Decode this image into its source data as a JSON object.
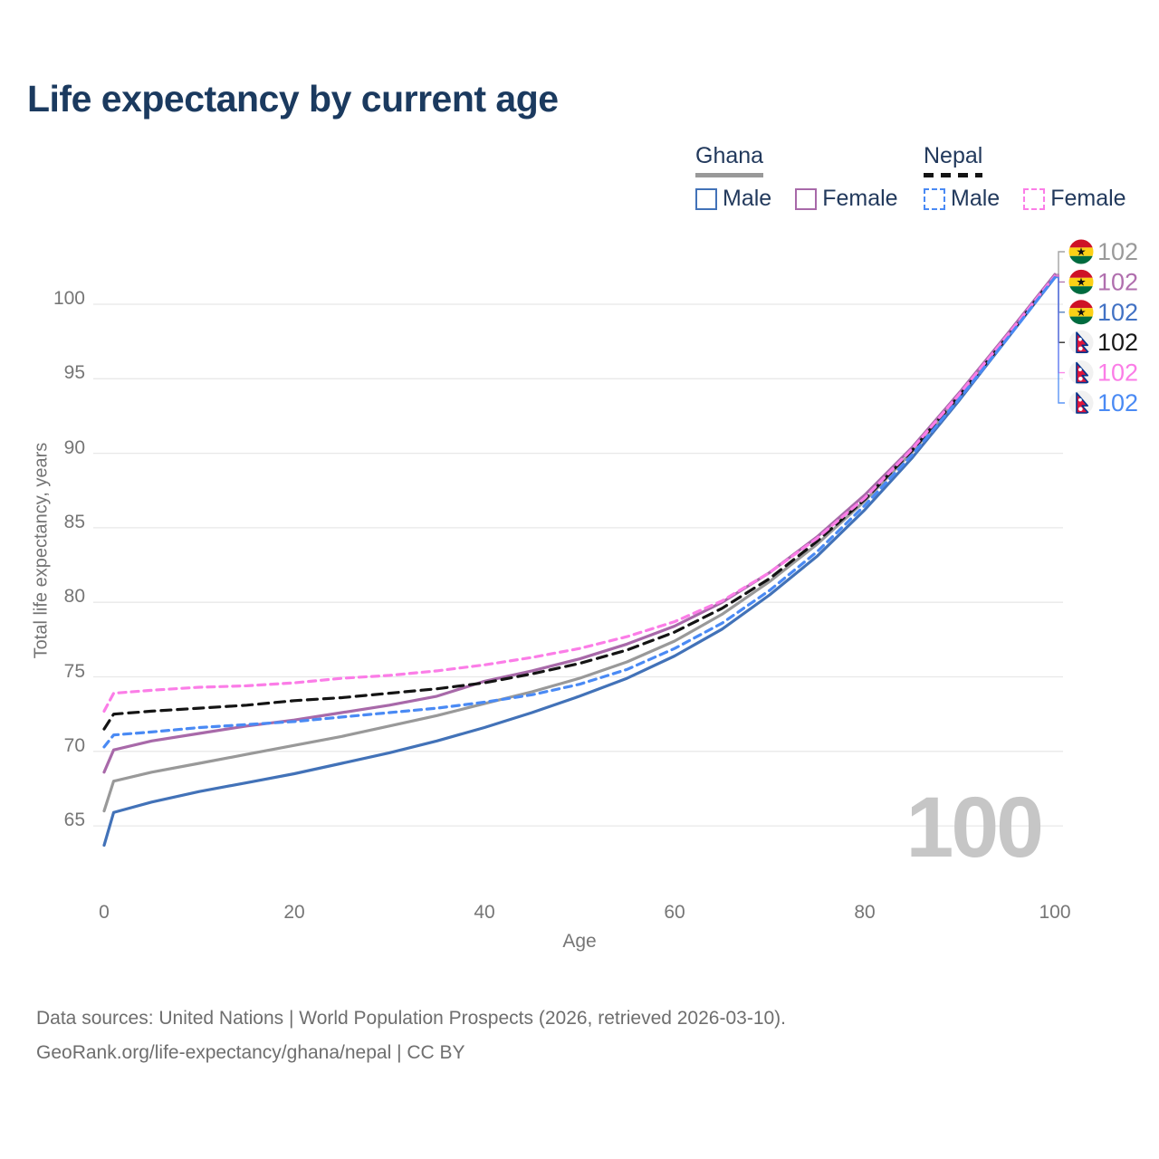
{
  "header": {
    "title": "Life expectancy by current age"
  },
  "legend": {
    "groups": [
      {
        "label": "Ghana",
        "line_style": "solid",
        "line_color": "#999999",
        "items": [
          {
            "label": "Male",
            "color": "#4272b8",
            "box_style": "solid"
          },
          {
            "label": "Female",
            "color": "#a869a9",
            "box_style": "solid"
          }
        ]
      },
      {
        "label": "Nepal",
        "line_style": "dashed",
        "line_color": "#141414",
        "items": [
          {
            "label": "Male",
            "color": "#4a8af4",
            "box_style": "dashed"
          },
          {
            "label": "Female",
            "color": "#fb7de7",
            "box_style": "dashed"
          }
        ]
      }
    ]
  },
  "chart_data": {
    "type": "line",
    "title": "Life expectancy by current age",
    "xlabel": "Age",
    "ylabel": "Total life expectancy, years",
    "xlim": [
      0,
      100
    ],
    "ylim": [
      62.5,
      103
    ],
    "x_ticks": [
      0,
      20,
      40,
      60,
      80,
      100
    ],
    "y_ticks": [
      65,
      70,
      75,
      80,
      85,
      90,
      95,
      100
    ],
    "grid": "horizontal",
    "legend_position": "top-right",
    "hover_age_label": "100",
    "ages": [
      0,
      1,
      5,
      10,
      15,
      20,
      25,
      30,
      35,
      40,
      45,
      50,
      55,
      60,
      65,
      70,
      75,
      80,
      85,
      90,
      95,
      100
    ],
    "series": [
      {
        "id": "ghana-both",
        "country": "Ghana",
        "sex": "Both sexes",
        "color": "#999999",
        "label_color": "#9a9a9a",
        "line_style": "solid",
        "flag": "ghana",
        "end_label": "102",
        "values": [
          66.0,
          68.0,
          68.6,
          69.2,
          69.8,
          70.4,
          71.0,
          71.7,
          72.4,
          73.2,
          74.0,
          74.9,
          76.0,
          77.4,
          79.2,
          81.4,
          83.9,
          86.8,
          90.1,
          93.8,
          97.8,
          101.9
        ]
      },
      {
        "id": "ghana-female",
        "country": "Ghana",
        "sex": "Female",
        "color": "#a869a9",
        "label_color": "#b06fae",
        "line_style": "solid",
        "flag": "ghana",
        "end_label": "102",
        "values": [
          68.6,
          70.1,
          70.7,
          71.2,
          71.7,
          72.1,
          72.6,
          73.1,
          73.7,
          74.7,
          75.4,
          76.2,
          77.2,
          78.4,
          80.0,
          82.0,
          84.4,
          87.2,
          90.4,
          94.1,
          98.0,
          102.0
        ]
      },
      {
        "id": "ghana-male",
        "country": "Ghana",
        "sex": "Male",
        "color": "#4272b8",
        "label_color": "#4272c4",
        "line_style": "solid",
        "flag": "ghana",
        "end_label": "102",
        "values": [
          63.7,
          65.9,
          66.6,
          67.3,
          67.9,
          68.5,
          69.2,
          69.9,
          70.7,
          71.6,
          72.6,
          73.7,
          74.9,
          76.4,
          78.2,
          80.5,
          83.1,
          86.2,
          89.7,
          93.6,
          97.7,
          101.8
        ]
      },
      {
        "id": "nepal-both",
        "country": "Nepal",
        "sex": "Both sexes",
        "color": "#141414",
        "label_color": "#1a1a1a",
        "line_style": "dashed",
        "flag": "nepal",
        "end_label": "102",
        "values": [
          71.5,
          72.5,
          72.7,
          72.9,
          73.1,
          73.4,
          73.6,
          73.9,
          74.2,
          74.6,
          75.2,
          75.9,
          76.8,
          78.0,
          79.6,
          81.6,
          84.1,
          86.9,
          90.2,
          93.9,
          97.8,
          101.9
        ]
      },
      {
        "id": "nepal-female",
        "country": "Nepal",
        "sex": "Female",
        "color": "#fb7de7",
        "label_color": "#fb7de7",
        "line_style": "dashed",
        "flag": "nepal",
        "end_label": "102",
        "values": [
          72.7,
          73.9,
          74.1,
          74.3,
          74.4,
          74.6,
          74.9,
          75.1,
          75.4,
          75.8,
          76.3,
          76.9,
          77.7,
          78.7,
          80.1,
          82.0,
          84.3,
          87.0,
          90.3,
          94.0,
          97.9,
          101.9
        ]
      },
      {
        "id": "nepal-male",
        "country": "Nepal",
        "sex": "Male",
        "color": "#4a8af4",
        "label_color": "#4a8af4",
        "line_style": "dashed",
        "flag": "nepal",
        "end_label": "102",
        "values": [
          70.3,
          71.1,
          71.3,
          71.6,
          71.8,
          72.0,
          72.3,
          72.6,
          72.9,
          73.3,
          73.8,
          74.5,
          75.5,
          76.9,
          78.6,
          80.8,
          83.4,
          86.5,
          89.9,
          93.7,
          97.7,
          101.8
        ]
      }
    ]
  },
  "colors": {
    "title": "#1b3a5f",
    "legend_text": "#22395c",
    "tick_text": "#767676",
    "gridline": "#e8e8e8",
    "watermark": "#c6c6c6",
    "footer_text": "#6e6e6e"
  },
  "footer": {
    "line1": "Data sources: United Nations | World Population Prospects (2026, retrieved 2026-03-10).",
    "line2": "GeoRank.org/life-expectancy/ghana/nepal | CC BY"
  }
}
